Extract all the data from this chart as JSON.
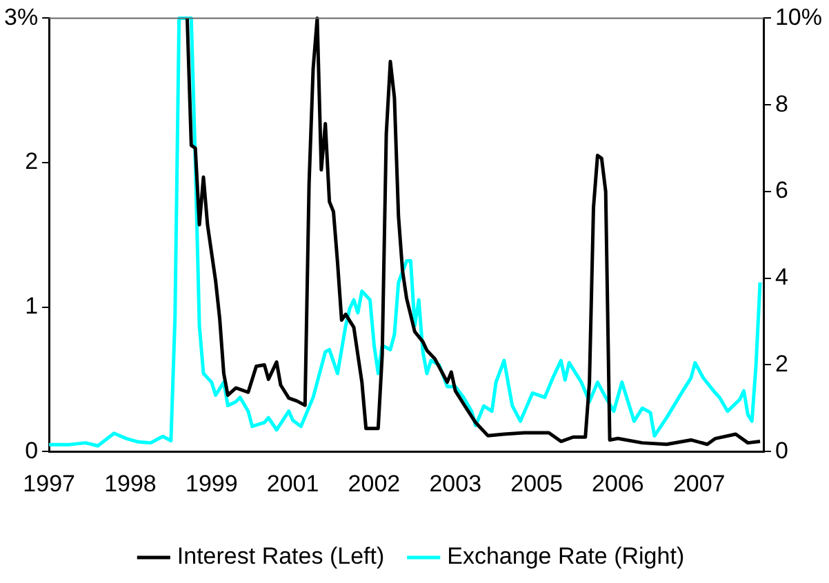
{
  "chart_data": {
    "type": "line",
    "categories": [
      "1997",
      null,
      null,
      null,
      null,
      null,
      null,
      null,
      null,
      null,
      null,
      null,
      null,
      null,
      null,
      null,
      null,
      null,
      null,
      null,
      "1998",
      null,
      null,
      null,
      null,
      null,
      null,
      null,
      null,
      null,
      null,
      null,
      null,
      null,
      null,
      null,
      null,
      null,
      null,
      null,
      "1999",
      null,
      null,
      null,
      null,
      null,
      null,
      null,
      null,
      null,
      null,
      null,
      null,
      null,
      null,
      null,
      null,
      null,
      null,
      null,
      "2001",
      null,
      null,
      null,
      null,
      null,
      null,
      null,
      null,
      null,
      null,
      null,
      null,
      null,
      null,
      null,
      null,
      null,
      null,
      null,
      "2002",
      null,
      null,
      null,
      null,
      null,
      null,
      null,
      null,
      null,
      null,
      null,
      null,
      null,
      null,
      null,
      null,
      null,
      null,
      null,
      "2003",
      null,
      null,
      null,
      null,
      null,
      null,
      null,
      null,
      null,
      null,
      null,
      null,
      null,
      null,
      null,
      null,
      null,
      null,
      null,
      "2005",
      null,
      null,
      null,
      null,
      null,
      null,
      null,
      null,
      null,
      null,
      null,
      null,
      null,
      null,
      null,
      null,
      null,
      null,
      null,
      "2006",
      null,
      null,
      null,
      null,
      null,
      null,
      null,
      null,
      null,
      null,
      null,
      null,
      null,
      null,
      null,
      null,
      null,
      null,
      null,
      "2007",
      null,
      null,
      null,
      null,
      null,
      null,
      null,
      null,
      null,
      null,
      null,
      null,
      null,
      null,
      null,
      null
    ],
    "ylim": [
      0,
      3
    ],
    "yticks": [
      0,
      1,
      2,
      {
        "value": 3,
        "label": "3%"
      }
    ],
    "y2lim": [
      0,
      10
    ],
    "y2ticks": [
      0,
      2,
      4,
      6,
      8,
      {
        "value": 10,
        "label": "10%"
      }
    ],
    "grid": false,
    "legend": "bottom",
    "marker": "none",
    "line_style": "solid",
    "series": [
      {
        "name": "Interest Rates (Left)",
        "color": "#000000",
        "axis": "y",
        "values": [
          null,
          null,
          null,
          null,
          null,
          null,
          null,
          null,
          null,
          null,
          null,
          null,
          null,
          null,
          null,
          null,
          null,
          null,
          null,
          null,
          null,
          null,
          null,
          null,
          null,
          null,
          null,
          null,
          null,
          null,
          null,
          null,
          null,
          null,
          3,
          2.12,
          2.1,
          1.57,
          1.9,
          1.57,
          null,
          1.18,
          0.92,
          0.54,
          0.39,
          null,
          0.44,
          null,
          null,
          0.41,
          null,
          0.59,
          null,
          0.6,
          0.5,
          null,
          0.62,
          0.46,
          null,
          0.37,
          null,
          0.35,
          null,
          0.32,
          1.86,
          2.65,
          3,
          1.95,
          2.27,
          1.73,
          1.66,
          1.31,
          0.91,
          0.95,
          null,
          0.86,
          0.67,
          0.48,
          0.16,
          null,
          null,
          0.16,
          0.67,
          2.2,
          2.7,
          2.45,
          1.63,
          1.25,
          1.06,
          null,
          0.83,
          null,
          0.76,
          0.7,
          null,
          0.64,
          null,
          null,
          0.48,
          0.55,
          0.42,
          null,
          0.33,
          null,
          null,
          0.2,
          null,
          null,
          0.11,
          null,
          null,
          null,
          0.12,
          null,
          null,
          null,
          null,
          0.13,
          null,
          null,
          null,
          null,
          null,
          0.13,
          null,
          null,
          0.07,
          null,
          null,
          0.1,
          null,
          null,
          0.1,
          0.48,
          1.69,
          2.05,
          2.03,
          1.8,
          0.08,
          null,
          0.09,
          null,
          null,
          null,
          null,
          null,
          0.06,
          null,
          null,
          null,
          null,
          null,
          0.05,
          null,
          null,
          null,
          null,
          null,
          0.08,
          null,
          null,
          null,
          0.05,
          null,
          0.09,
          null,
          null,
          null,
          null,
          0.12,
          null,
          null,
          0.06,
          null,
          null,
          0.07,
          null
        ]
      },
      {
        "name": "Exchange Rate (Right)",
        "color": "#00ffff",
        "axis": "y2",
        "values": [
          0.16,
          null,
          null,
          null,
          null,
          0.16,
          null,
          null,
          null,
          0.2,
          null,
          null,
          0.13,
          null,
          null,
          null,
          0.42,
          null,
          null,
          0.3,
          null,
          null,
          0.22,
          null,
          null,
          0.2,
          null,
          null,
          0.35,
          null,
          0.25,
          3.1,
          10,
          null,
          null,
          10,
          6.7,
          2.9,
          1.8,
          null,
          1.6,
          1.3,
          null,
          1.6,
          1.06,
          null,
          1.15,
          1.25,
          null,
          0.93,
          0.58,
          null,
          null,
          0.67,
          0.78,
          null,
          0.5,
          null,
          null,
          0.93,
          0.72,
          null,
          0.58,
          null,
          null,
          1.25,
          1.6,
          null,
          2.3,
          2.35,
          null,
          1.8,
          null,
          2.9,
          3.3,
          3.5,
          3.2,
          3.7,
          null,
          3.5,
          2.45,
          1.8,
          2.45,
          null,
          2.35,
          2.7,
          3.9,
          null,
          4.4,
          4.4,
          2.9,
          3.5,
          2.3,
          1.8,
          2.1,
          null,
          2,
          null,
          1.5,
          null,
          1.5,
          null,
          1.25,
          null,
          0.93,
          0.6,
          null,
          1.05,
          null,
          0.93,
          1.6,
          null,
          2.1,
          null,
          1.06,
          null,
          0.7,
          null,
          null,
          1.35,
          null,
          null,
          1.25,
          null,
          1.7,
          null,
          2.1,
          1.65,
          2.05,
          null,
          null,
          1.6,
          null,
          1.15,
          null,
          1.6,
          null,
          1.25,
          null,
          0.93,
          null,
          1.6,
          null,
          null,
          0.7,
          null,
          1,
          null,
          0.9,
          0.36,
          null,
          null,
          0.78,
          null,
          null,
          null,
          1.4,
          null,
          1.7,
          2.05,
          null,
          1.7,
          null,
          null,
          1.35,
          1.25,
          null,
          0.93,
          null,
          null,
          1.2,
          1.4,
          0.85,
          0.7,
          2,
          3.9,
          null
        ]
      }
    ]
  }
}
